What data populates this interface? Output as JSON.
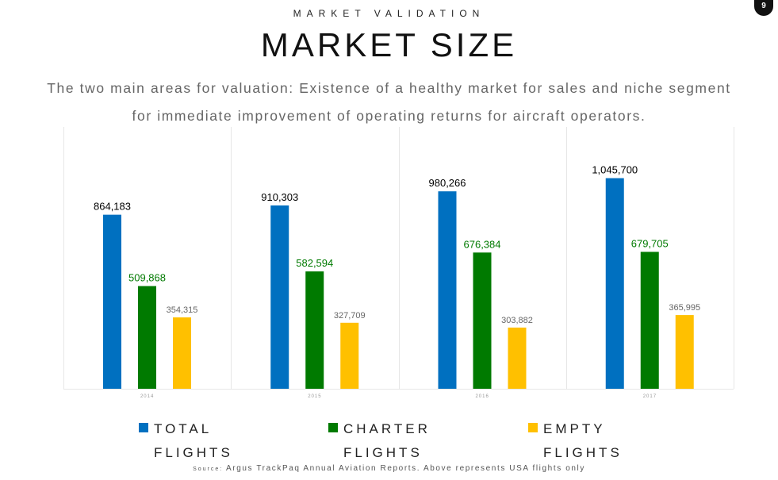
{
  "header": {
    "kicker": "MARKET VALIDATION",
    "title": "MARKET SIZE",
    "page_number": "9",
    "subtitle_line1": "The two main areas for valuation:  Existence of a healthy market for sales and niche segment",
    "subtitle_line2": "for immediate improvement of operating returns for aircraft operators."
  },
  "legend": [
    {
      "line1": "TOTAL",
      "line2": "FLIGHTS",
      "color": "#0070C0"
    },
    {
      "line1": "CHARTER",
      "line2": "FLIGHTS",
      "color": "#007A00"
    },
    {
      "line1": "EMPTY",
      "line2": "FLIGHTS",
      "color": "#FFC000"
    }
  ],
  "footer": {
    "source_label": "Source:",
    "source_text": "Argus TrackPaq Annual Aviation Reports. Above represents USA flights only"
  },
  "chart_data": {
    "type": "bar",
    "categories": [
      "2014",
      "2015",
      "2016",
      "2017"
    ],
    "series": [
      {
        "name": "TOTAL FLIGHTS",
        "color": "#0070C0",
        "label_color": "#000000",
        "values": [
          864183,
          910303,
          980266,
          1045700
        ],
        "labels": [
          "864,183",
          "910,303",
          "980,266",
          "1,045,700"
        ]
      },
      {
        "name": "CHARTER FLIGHTS",
        "color": "#007A00",
        "label_color": "#007A00",
        "values": [
          509868,
          582594,
          676384,
          679705
        ],
        "labels": [
          "509,868",
          "582,594",
          "676,384",
          "679,705"
        ]
      },
      {
        "name": "EMPTY FLIGHTS",
        "color": "#FFC000",
        "label_color": "#666666",
        "values": [
          354315,
          327709,
          303882,
          365995
        ],
        "labels": [
          "354,315",
          "327,709",
          "303,882",
          "365,995"
        ]
      }
    ],
    "ylim": [
      0,
      1300000
    ],
    "grid": false,
    "legend_position": "bottom"
  }
}
